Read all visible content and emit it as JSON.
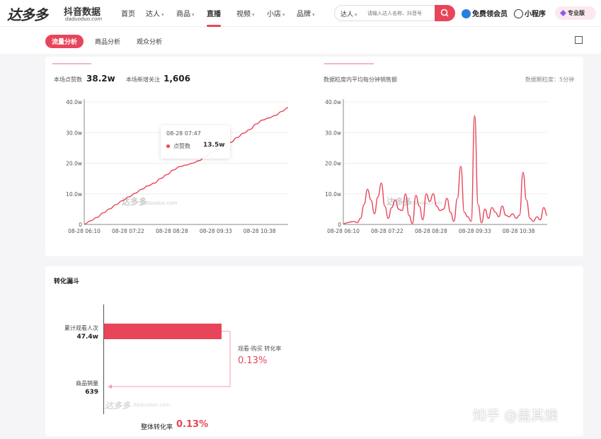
{
  "header": {
    "logo_text": "达多多",
    "logo_subtitle": "抖音数据",
    "logo_url": "daduoduo.com",
    "nav": [
      {
        "label": "首页",
        "dropdown": false,
        "active": false
      },
      {
        "label": "达人",
        "dropdown": true,
        "active": false
      },
      {
        "label": "商品",
        "dropdown": true,
        "active": false
      },
      {
        "label": "直播",
        "dropdown": true,
        "active": true
      },
      {
        "label": "视频",
        "dropdown": true,
        "active": false
      },
      {
        "label": "小店",
        "dropdown": true,
        "active": false
      },
      {
        "label": "品牌",
        "dropdown": true,
        "active": false
      }
    ],
    "search": {
      "type_label": "达人",
      "placeholder": "请输入达人名称、抖音号"
    },
    "free_member": "免费领会员",
    "mini_program": "小程序",
    "pro_badge": "专业版"
  },
  "tabs": [
    {
      "label": "流量分析",
      "active": true
    },
    {
      "label": "商品分析",
      "active": false
    },
    {
      "label": "观众分析",
      "active": false
    }
  ],
  "traffic": {
    "likes_label": "本场点赞数",
    "likes_value": "38.2w",
    "new_followers_label": "本场新增关注",
    "new_followers_value": "1,606",
    "sales_title": "数据粒度内平均每分钟销售额",
    "granularity": "数据颗粒度：5分钟",
    "tooltip": {
      "time": "08-28 07:47",
      "series": "点赞数",
      "value": "13.5w"
    },
    "watermark": "达多多",
    "watermark_url": "daduoduo.com"
  },
  "chart_data": [
    {
      "type": "line",
      "series": [
        {
          "name": "点赞数",
          "values": [
            0.1,
            1.2,
            2.3,
            3.8,
            5.1,
            6.5,
            7.8,
            9.0,
            10.2,
            11.5,
            12.6,
            13.5,
            15.0,
            16.3,
            17.8,
            18.9,
            19.4,
            20.0,
            20.8,
            22.1,
            23.6,
            24.5,
            25.2,
            26.8,
            28.4,
            29.8,
            31.0,
            32.8,
            34.1,
            34.8,
            35.6,
            36.9,
            38.2
          ]
        }
      ],
      "x_labels": [
        "08-28 06:10",
        "08-28 07:22",
        "08-28 08:28",
        "08-28 09:33",
        "08-28 10:38"
      ],
      "y_ticks": [
        "0",
        "10.0w",
        "20.0w",
        "30.0w",
        "40.0w"
      ],
      "ylim": [
        0,
        40
      ]
    },
    {
      "type": "line",
      "series": [
        {
          "name": "",
          "values": [
            0.2,
            0.5,
            0.8,
            1.0,
            0.6,
            2.0,
            6.5,
            11.5,
            8.0,
            3.5,
            9.0,
            13.5,
            6.0,
            2.0,
            5.5,
            8.0,
            5.0,
            4.5,
            10.0,
            3.0,
            0.3,
            9.5,
            6.0,
            1.5,
            10.0,
            7.5,
            10.0,
            6.0,
            4.5,
            5.0,
            8.5,
            4.0,
            1.0,
            8.5,
            19.0,
            4.0,
            2.5,
            1.0,
            35.5,
            6.5,
            0.5,
            5.0,
            2.0,
            5.5,
            4.0,
            2.5,
            6.0,
            3.0,
            2.5,
            3.5,
            2.0,
            3.0,
            17.0,
            8.0,
            2.0,
            1.0,
            2.5,
            1.5,
            5.5,
            3.0
          ]
        }
      ],
      "x_labels": [
        "08-28 06:10",
        "08-28 07:22",
        "08-28 08:28",
        "08-28 09:33",
        "08-28 10:38"
      ],
      "y_ticks": [
        "0",
        "10.0w",
        "20.0w",
        "30.0w",
        "40.0w"
      ],
      "ylim": [
        0,
        40
      ]
    }
  ],
  "funnel": {
    "title": "转化漏斗",
    "views_label": "累计观看人次",
    "views_value": "47.4w",
    "sales_label": "商品销量",
    "sales_value": "639",
    "rate_label": "观看-购买 转化率",
    "rate_value": "0.13%",
    "total_label": "整体转化率",
    "total_value": "0.13%",
    "watermark": "达多多",
    "watermark_url": "daduoduo.com"
  },
  "overlay_text": "知乎 @盖其燠",
  "colors": {
    "accent": "#e8455a",
    "line": "#e8455a"
  }
}
